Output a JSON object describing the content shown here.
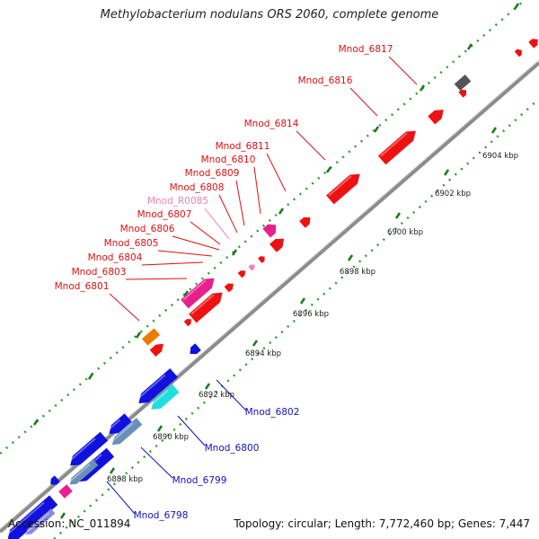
{
  "title": "Methylobacterium nodulans ORS 2060, complete genome",
  "footer": {
    "accession": "Accession: NC_011894",
    "topology": "Topology: circular; Length: 7,772,460 bp; Genes: 7,447"
  },
  "colors": {
    "forward_label": "#dd1111",
    "pseudo_label": "#f080b8",
    "reverse_label": "#1111bb",
    "backbone": "#8c8c8c",
    "tick_major": "#1a7a1a",
    "tick_minor": "#2a9a2a"
  },
  "scale_labels": [
    "6888 kbp",
    "6890 kbp",
    "6892 kbp",
    "6894 kbp",
    "6896 kbp",
    "6898 kbp",
    "6900 kbp",
    "6902 kbp",
    "6904 kbp"
  ],
  "forward_labels": [
    {
      "name": "Mnod_6817",
      "type": "cds"
    },
    {
      "name": "Mnod_6816",
      "type": "cds"
    },
    {
      "name": "Mnod_6814",
      "type": "cds"
    },
    {
      "name": "Mnod_6811",
      "type": "cds"
    },
    {
      "name": "Mnod_6810",
      "type": "cds"
    },
    {
      "name": "Mnod_6809",
      "type": "cds"
    },
    {
      "name": "Mnod_6808",
      "type": "cds"
    },
    {
      "name": "Mnod_R0085",
      "type": "rna"
    },
    {
      "name": "Mnod_6807",
      "type": "cds"
    },
    {
      "name": "Mnod_6806",
      "type": "cds"
    },
    {
      "name": "Mnod_6805",
      "type": "cds"
    },
    {
      "name": "Mnod_6804",
      "type": "cds"
    },
    {
      "name": "Mnod_6803",
      "type": "cds"
    },
    {
      "name": "Mnod_6801",
      "type": "cds"
    }
  ],
  "reverse_labels": [
    {
      "name": "Mnod_6802"
    },
    {
      "name": "Mnod_6800"
    },
    {
      "name": "Mnod_6799"
    },
    {
      "name": "Mnod_6798"
    }
  ]
}
